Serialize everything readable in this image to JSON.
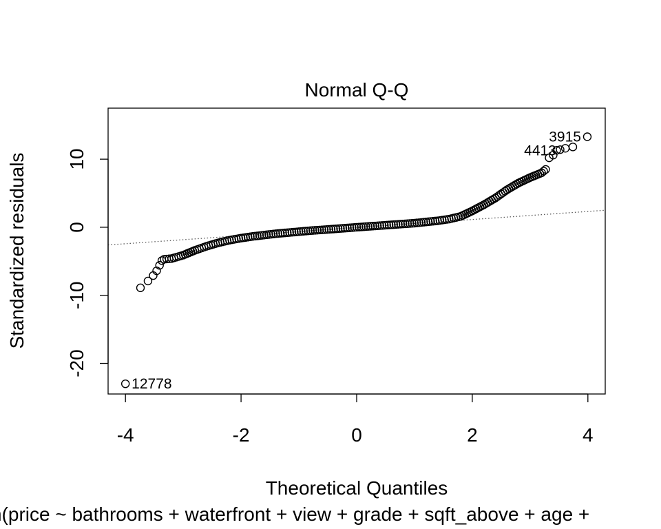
{
  "chart_data": {
    "type": "scatter",
    "title": "Normal Q-Q",
    "xlabel": "Theoretical Quantiles",
    "ylabel": "Standardized residuals",
    "subtitle": "lm(price ~ bathrooms + waterfront + view + grade + sqft_above + age +",
    "xlim": [
      -4.3,
      4.3
    ],
    "ylim": [
      -24.5,
      17.5
    ],
    "x_ticks": [
      -4,
      -2,
      0,
      2,
      4
    ],
    "y_ticks": [
      -20,
      -10,
      0,
      10
    ],
    "grid": false,
    "reference_line": {
      "style": "dotted",
      "points": [
        [
          -4.3,
          -2.6
        ],
        [
          4.3,
          2.5
        ]
      ]
    },
    "point_labels": [
      {
        "text": "3915",
        "x": 3.99,
        "y": 13.3
      },
      {
        "text": "4413",
        "x": 3.56,
        "y": 11.3
      },
      {
        "text": "12778",
        "x": -4.0,
        "y": -23.0
      }
    ],
    "points": [
      [
        -4.0,
        -23.0
      ],
      [
        -3.74,
        -8.9
      ],
      [
        -3.61,
        -7.9
      ],
      [
        -3.52,
        -7.1
      ],
      [
        -3.46,
        -6.4
      ],
      [
        -3.41,
        -5.6
      ],
      [
        -3.37,
        -4.9
      ],
      [
        -3.33,
        -4.7
      ],
      [
        -3.2,
        -4.6
      ],
      [
        -3.0,
        -4.1
      ],
      [
        -2.8,
        -3.4
      ],
      [
        -2.6,
        -2.8
      ],
      [
        -2.4,
        -2.3
      ],
      [
        -2.2,
        -1.9
      ],
      [
        -2.0,
        -1.6
      ],
      [
        -1.8,
        -1.35
      ],
      [
        -1.6,
        -1.15
      ],
      [
        -1.4,
        -0.95
      ],
      [
        -1.2,
        -0.8
      ],
      [
        -1.0,
        -0.65
      ],
      [
        -0.8,
        -0.5
      ],
      [
        -0.6,
        -0.38
      ],
      [
        -0.4,
        -0.26
      ],
      [
        -0.2,
        -0.13
      ],
      [
        0.0,
        0.0
      ],
      [
        0.2,
        0.12
      ],
      [
        0.4,
        0.24
      ],
      [
        0.6,
        0.36
      ],
      [
        0.8,
        0.48
      ],
      [
        1.0,
        0.6
      ],
      [
        1.2,
        0.78
      ],
      [
        1.4,
        0.95
      ],
      [
        1.6,
        1.2
      ],
      [
        1.8,
        1.6
      ],
      [
        2.0,
        2.4
      ],
      [
        2.2,
        3.3
      ],
      [
        2.4,
        4.3
      ],
      [
        2.6,
        5.5
      ],
      [
        2.8,
        6.5
      ],
      [
        3.0,
        7.3
      ],
      [
        3.2,
        8.0
      ],
      [
        3.27,
        8.5
      ],
      [
        3.33,
        10.2
      ],
      [
        3.4,
        10.6
      ],
      [
        3.46,
        11.3
      ],
      [
        3.52,
        11.4
      ],
      [
        3.61,
        11.6
      ],
      [
        3.74,
        11.8
      ],
      [
        3.99,
        13.3
      ]
    ]
  }
}
